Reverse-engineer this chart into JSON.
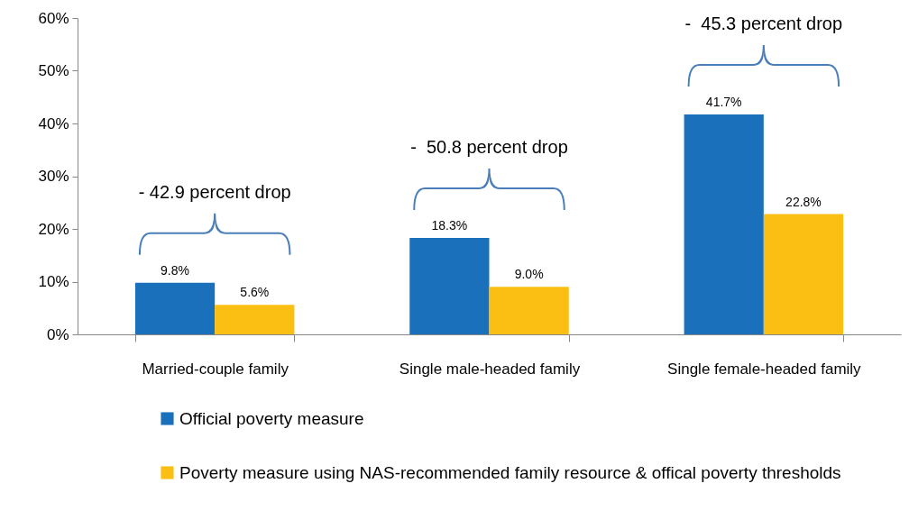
{
  "chart_data": {
    "type": "bar",
    "categories": [
      "Married-couple family",
      "Single male-headed family",
      "Single female-headed family"
    ],
    "series": [
      {
        "name": "Official poverty measure",
        "color": "#1b70bb",
        "values": [
          9.8,
          18.3,
          41.7
        ],
        "value_labels": [
          "9.8%",
          "18.3%",
          "41.7%"
        ]
      },
      {
        "name": "Poverty measure using NAS-recommended family resource & offical poverty thresholds",
        "color": "#fbbf14",
        "values": [
          5.6,
          9.0,
          22.8
        ],
        "value_labels": [
          "5.6%",
          "9.0%",
          "22.8%"
        ]
      }
    ],
    "ylim": [
      0,
      60
    ],
    "yticks": [
      {
        "value": 0,
        "label": "0%"
      },
      {
        "value": 10,
        "label": "10%"
      },
      {
        "value": 20,
        "label": "20%"
      },
      {
        "value": 30,
        "label": "30%"
      },
      {
        "value": 40,
        "label": "40%"
      },
      {
        "value": 50,
        "label": "50%"
      },
      {
        "value": 60,
        "label": "60%"
      }
    ],
    "annotations": [
      "- 42.9 percent drop",
      "-  50.8 percent drop",
      "-  45.3 percent drop"
    ],
    "grid": false,
    "legend": "bottom"
  }
}
